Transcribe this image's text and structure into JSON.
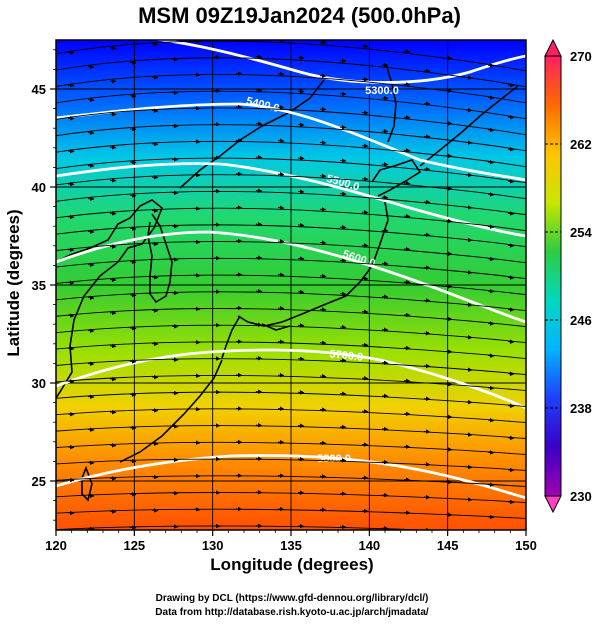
{
  "title": "MSM 09Z19Jan2024 (500.0hPa)",
  "axes": {
    "xlabel": "Longitude (degrees)",
    "ylabel": "Latitude  (degrees)",
    "xticks": [
      "120",
      "125",
      "130",
      "135",
      "140",
      "145",
      "150"
    ],
    "yticks": [
      "25",
      "30",
      "35",
      "40",
      "45"
    ],
    "xrange": [
      120,
      150
    ],
    "yrange": [
      22.5,
      47.5
    ]
  },
  "colorbar": {
    "ticks": [
      "270",
      "262",
      "254",
      "246",
      "238",
      "230"
    ],
    "range": [
      230,
      270
    ],
    "colors": [
      "#ff2060",
      "#ff6a00",
      "#ffc400",
      "#c8e600",
      "#2ecc40",
      "#00d8c0",
      "#00b4ff",
      "#1f3fff",
      "#3a00c8",
      "#a000b0"
    ]
  },
  "contours": {
    "color": "#ffffff",
    "labels": [
      "5300.0",
      "5400.0",
      "5500.0",
      "5600.0",
      "5700.0",
      "5800.0"
    ]
  },
  "credits": {
    "line1": "Drawing by DCL (https://www.gfd-dennou.org/library/dcl/)",
    "line2": "Data from http://database.rish.kyoto-u.ac.jp/arch/jmadata/"
  }
}
